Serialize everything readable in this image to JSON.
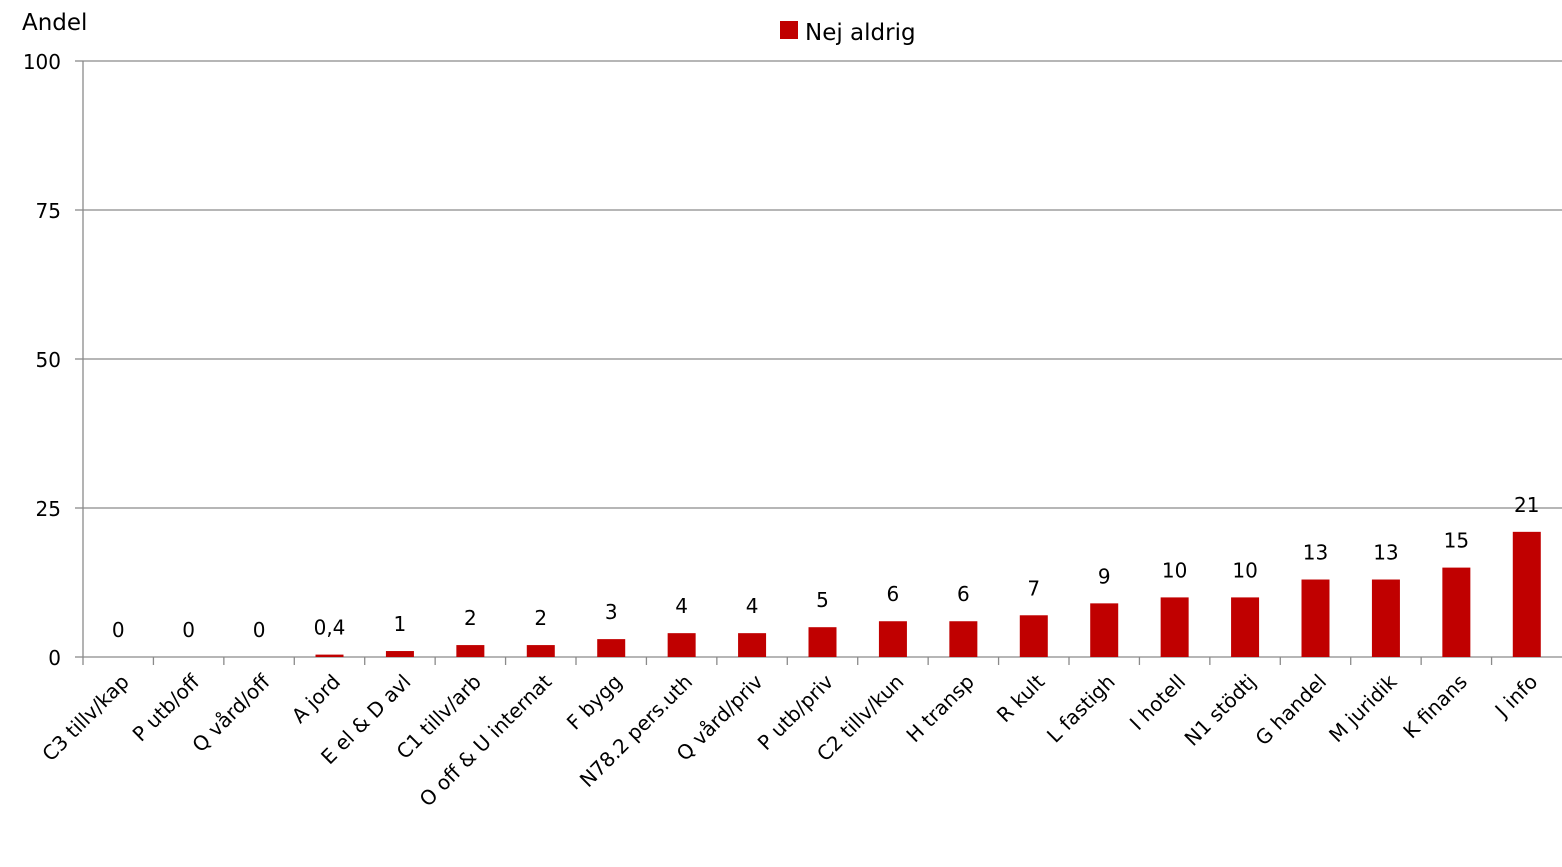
{
  "chart_data": {
    "type": "bar",
    "title": "",
    "xlabel": "",
    "ylabel": "Andel",
    "ylim": [
      0,
      100
    ],
    "yticks": [
      0,
      25,
      50,
      75,
      100
    ],
    "grid": true,
    "legend": "top-center",
    "categories": [
      "C3 tillv/kap",
      "P utb/off",
      "Q vård/off",
      "A jord",
      "E el & D avl",
      "C1 tillv/arb",
      "O off & U internat",
      "F bygg",
      "N78.2 pers.uth",
      "Q vård/priv",
      "P utb/priv",
      "C2 tillv/kun",
      "H transp",
      "R kult",
      "L fastigh",
      "I hotell",
      "N1 stödtj",
      "G handel",
      "M juridik",
      "K finans",
      "J info"
    ],
    "series": [
      {
        "name": "Nej aldrig",
        "color": "#c00000",
        "values": [
          0,
          0,
          0,
          0.4,
          1,
          2,
          2,
          3,
          4,
          4,
          5,
          6,
          6,
          7,
          9,
          10,
          10,
          13,
          13,
          15,
          21
        ],
        "labels": [
          "0",
          "0",
          "0",
          "0,4",
          "1",
          "2",
          "2",
          "3",
          "4",
          "4",
          "5",
          "6",
          "6",
          "7",
          "9",
          "10",
          "10",
          "13",
          "13",
          "15",
          "21"
        ]
      }
    ]
  }
}
